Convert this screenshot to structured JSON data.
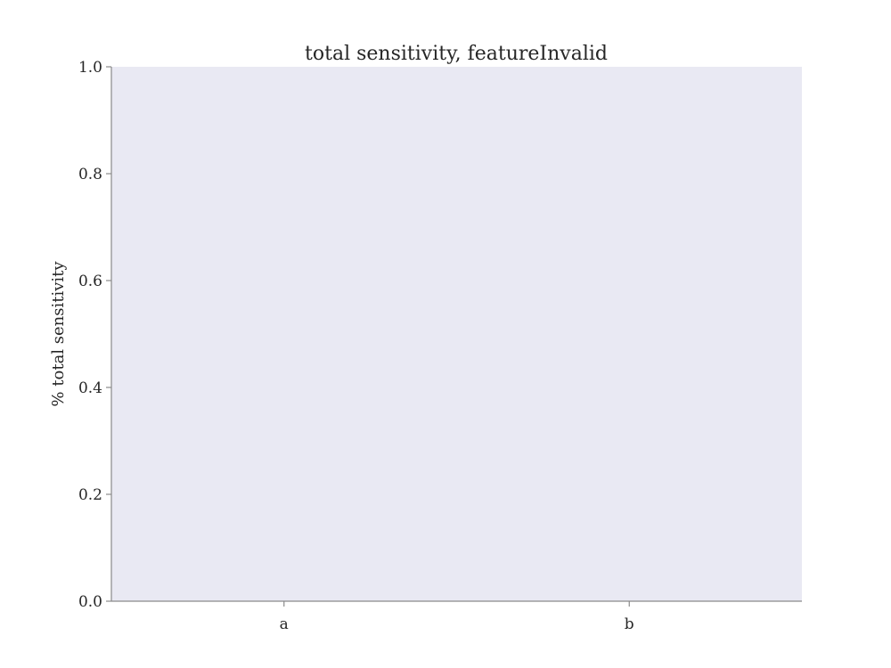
{
  "chart_data": {
    "type": "bar",
    "title": "total sensitivity, featureInvalid",
    "xlabel": "",
    "ylabel": "% total sensitivity",
    "categories": [
      "a",
      "b"
    ],
    "values": [
      0.0,
      0.0
    ],
    "ylim": [
      0.0,
      1.0
    ],
    "yticks": [
      "0.0",
      "0.2",
      "0.4",
      "0.6",
      "0.8",
      "1.0"
    ],
    "grid": false,
    "legend": "none",
    "colors": {
      "plot_background": "#e9e9f3",
      "axis": "#8a8a8a",
      "text": "#262626",
      "bar": "#4c72b0"
    }
  }
}
